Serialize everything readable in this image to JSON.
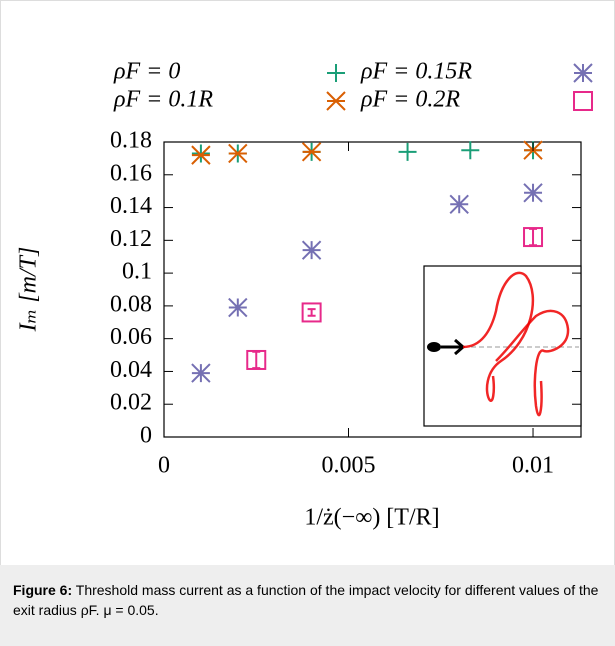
{
  "chart_data": {
    "type": "scatter",
    "x_label": "1/ż(−∞) [T/R]",
    "y_label": "Iₘ   [m/T]",
    "xlim": [
      0,
      0.0113
    ],
    "ylim": [
      0,
      0.18
    ],
    "xticks": [
      0,
      0.005,
      0.01
    ],
    "yticks": [
      0,
      0.02,
      0.04,
      0.06,
      0.08,
      0.1,
      0.12,
      0.14,
      0.16,
      0.18
    ],
    "series": [
      {
        "name": "ρF = 0",
        "color": "#1a9e77",
        "marker": "plus",
        "x": [
          0.001,
          0.002,
          0.004,
          0.0066,
          0.0083,
          0.01
        ],
        "values": [
          0.173,
          0.173,
          0.174,
          0.174,
          0.175,
          0.175
        ]
      },
      {
        "name": "ρF = 0.1R",
        "color": "#d95f02",
        "marker": "cross-star",
        "x": [
          0.001,
          0.002,
          0.004,
          0.01
        ],
        "values": [
          0.172,
          0.173,
          0.174,
          0.175
        ]
      },
      {
        "name": "ρF = 0.15R",
        "color": "#7570b3",
        "marker": "star",
        "x": [
          0.001,
          0.002,
          0.004,
          0.008,
          0.01
        ],
        "values": [
          0.039,
          0.079,
          0.114,
          0.142,
          0.149
        ]
      },
      {
        "name": "ρF = 0.2R",
        "color": "#e7298a",
        "marker": "box",
        "x": [
          0.0025,
          0.004,
          0.01
        ],
        "values": [
          0.047,
          0.076,
          0.122
        ],
        "errors": [
          0.005,
          0.002,
          0.005
        ]
      }
    ]
  },
  "caption": {
    "label": "Figure 6:",
    "text": "Threshold mass current as a function of the impact velocity for different values of the exit radius ρF. μ = 0.05."
  }
}
